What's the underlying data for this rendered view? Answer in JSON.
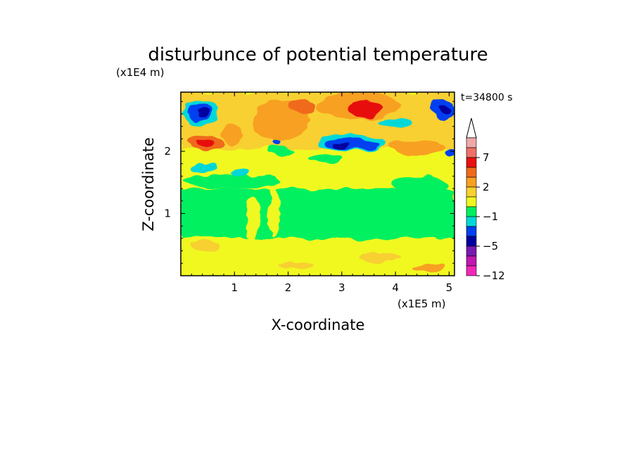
{
  "chart_data": {
    "type": "heatmap",
    "title": "disturbunce of potential temperature",
    "xlabel": "X-coordinate",
    "ylabel": "Z-coordinate",
    "x_unit": "(x1E5 m)",
    "y_unit": "(x1E4 m)",
    "time_label": "t=34800 s",
    "xlim": [
      0,
      5.1
    ],
    "ylim": [
      0,
      2.95
    ],
    "x_ticks": [
      1,
      2,
      3,
      4,
      5
    ],
    "x_tick_labels": [
      "1",
      "2",
      "3",
      "4",
      "5"
    ],
    "y_ticks": [
      1,
      2
    ],
    "y_tick_labels": [
      "1",
      "2"
    ],
    "colorbar": {
      "tick_labels": [
        "7",
        "2",
        "−1",
        "−5",
        "−12"
      ],
      "levels": [
        {
          "color": "#f0a8a8"
        },
        {
          "color": "#ee7068"
        },
        {
          "color": "#e81010"
        },
        {
          "color": "#f06a1c"
        },
        {
          "color": "#f8a020"
        },
        {
          "color": "#f8d030"
        },
        {
          "color": "#f0f820"
        },
        {
          "color": "#00f060"
        },
        {
          "color": "#00d8d8"
        },
        {
          "color": "#0040f0"
        },
        {
          "color": "#0000a0"
        },
        {
          "color": "#7a1ab0"
        },
        {
          "color": "#c018b0"
        },
        {
          "color": "#f028b8"
        }
      ],
      "extend_top_color": "#ffffff"
    },
    "layers": [
      {
        "z_range": [
          0.0,
          0.8
        ],
        "dominant": "#f0f820",
        "value_range": [
          1,
          2
        ]
      },
      {
        "z_range": [
          0.8,
          1.6
        ],
        "dominant": "#00f060",
        "value_range": [
          -1,
          1
        ]
      },
      {
        "z_range": [
          1.6,
          2.2
        ],
        "dominant": "#f0f820",
        "value_range": [
          1,
          3
        ]
      },
      {
        "z_range": [
          2.2,
          2.95
        ],
        "dominant": "#f8a020",
        "value_range": [
          -5,
          7
        ]
      }
    ]
  }
}
